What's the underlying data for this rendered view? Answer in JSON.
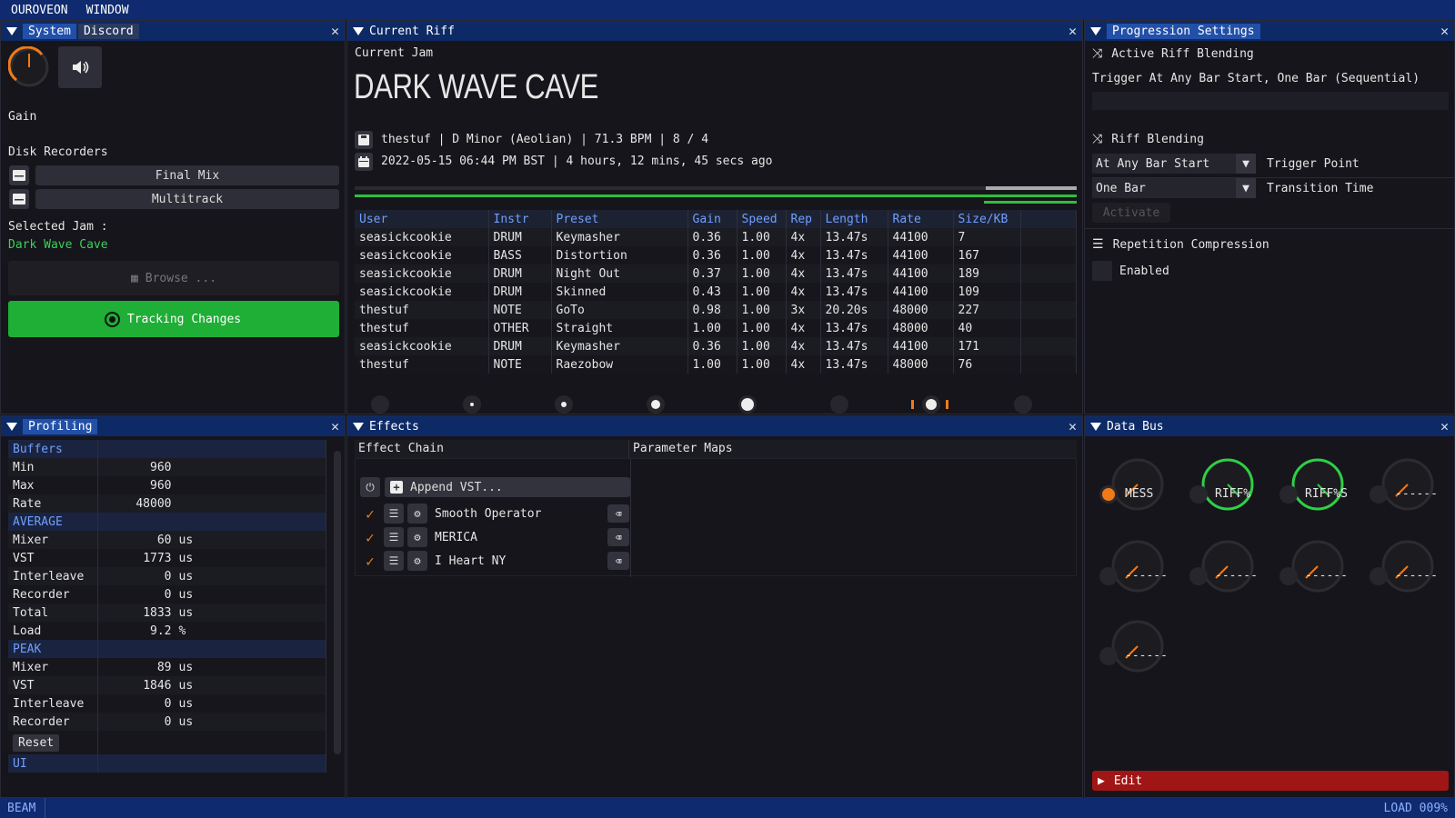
{
  "menu": {
    "app": "OUROVEON",
    "window": "WINDOW"
  },
  "status": {
    "left": "BEAM",
    "right": "LOAD 009%"
  },
  "system": {
    "tabs": [
      "System",
      "Discord"
    ],
    "gain_label": "Gain",
    "disk_recorders_label": "Disk Recorders",
    "final_mix": "Final Mix",
    "multitrack": "Multitrack",
    "selected_jam_label": "Selected Jam :",
    "selected_jam": "Dark Wave Cave",
    "browse": "Browse ...",
    "tracking": "Tracking Changes"
  },
  "riff": {
    "title": "Current Riff",
    "current_jam_label": "Current Jam",
    "jam_name": "DARK WAVE CAVE",
    "info_line": "thestuf | D Minor (Aeolian) | 71.3 BPM | 8 / 4",
    "date_line": "2022-05-15 06:44 PM BST | 4 hours, 12 mins, 45 secs ago",
    "columns": [
      "User",
      "Instr",
      "Preset",
      "Gain",
      "Speed",
      "Rep",
      "Length",
      "Rate",
      "Size/KB"
    ],
    "rows": [
      [
        "seasickcookie",
        "DRUM",
        "Keymasher",
        "0.36",
        "1.00",
        "4x",
        "13.47s",
        "44100",
        "7"
      ],
      [
        "seasickcookie",
        "BASS",
        "Distortion",
        "0.36",
        "1.00",
        "4x",
        "13.47s",
        "44100",
        "167"
      ],
      [
        "seasickcookie",
        "DRUM",
        "Night Out",
        "0.37",
        "1.00",
        "4x",
        "13.47s",
        "44100",
        "189"
      ],
      [
        "seasickcookie",
        "DRUM",
        "Skinned",
        "0.43",
        "1.00",
        "4x",
        "13.47s",
        "44100",
        "109"
      ],
      [
        "thestuf",
        "NOTE",
        "GoTo",
        "0.98",
        "1.00",
        "3x",
        "20.20s",
        "48000",
        "227"
      ],
      [
        "thestuf",
        "OTHER",
        "Straight",
        "1.00",
        "1.00",
        "4x",
        "13.47s",
        "48000",
        "40"
      ],
      [
        "seasickcookie",
        "DRUM",
        "Keymasher",
        "0.36",
        "1.00",
        "4x",
        "13.47s",
        "44100",
        "171"
      ],
      [
        "thestuf",
        "NOTE",
        "Raezobow",
        "1.00",
        "1.00",
        "4x",
        "13.47s",
        "48000",
        "76"
      ]
    ]
  },
  "progression": {
    "title": "Progression Settings",
    "active_label": "Active Riff Blending",
    "active_value": "Trigger At Any Bar Start, One Bar (Sequential)",
    "blending_label": "Riff Blending",
    "trigger_value": "At Any Bar Start",
    "trigger_label": "Trigger Point",
    "transition_value": "One Bar",
    "transition_label": "Transition Time",
    "activate": "Activate",
    "repetition_label": "Repetition Compression",
    "enabled_label": "Enabled"
  },
  "profiling": {
    "title": "Profiling",
    "buffers_label": "Buffers",
    "buffers": [
      [
        "Min",
        "960",
        ""
      ],
      [
        "Max",
        "960",
        ""
      ],
      [
        "Rate",
        "48000",
        ""
      ]
    ],
    "average_label": "AVERAGE",
    "average": [
      [
        "Mixer",
        "60",
        "us"
      ],
      [
        "VST",
        "1773",
        "us"
      ],
      [
        "Interleave",
        "0",
        "us"
      ],
      [
        "Recorder",
        "0",
        "us"
      ],
      [
        "Total",
        "1833",
        "us"
      ],
      [
        "Load",
        "9.2",
        "%"
      ]
    ],
    "peak_label": "PEAK",
    "peak": [
      [
        "Mixer",
        "89",
        "us"
      ],
      [
        "VST",
        "1846",
        "us"
      ],
      [
        "Interleave",
        "0",
        "us"
      ],
      [
        "Recorder",
        "0",
        "us"
      ]
    ],
    "reset": "Reset",
    "ui_label": "UI"
  },
  "effects": {
    "title": "Effects",
    "chain_label": "Effect Chain",
    "param_label": "Parameter Maps",
    "append": "Append VST...",
    "items": [
      "Smooth Operator",
      "MERICA",
      "I Heart NY"
    ]
  },
  "databus": {
    "title": "Data Bus",
    "channels": [
      "MESS",
      "RIFF%",
      "RIFF%S",
      "------",
      "------",
      "------",
      "------",
      "------",
      "------"
    ],
    "edit": "Edit"
  },
  "colors": {
    "accent": "#3ecf5a",
    "orange": "#f07a1a",
    "header": "#0d2a66",
    "edit": "#a01616"
  }
}
